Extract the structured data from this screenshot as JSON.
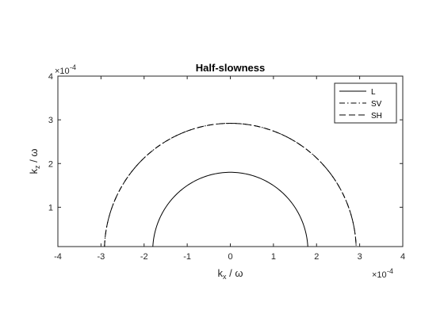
{
  "chart_data": {
    "type": "line",
    "title": "Half-slowness",
    "xlabel": {
      "main": "k",
      "sub": "x",
      "rest": " / ω"
    },
    "ylabel": {
      "main": "k",
      "sub": "z",
      "rest": " / ω"
    },
    "xlim": [
      -4,
      4
    ],
    "ylim": [
      0.1,
      4
    ],
    "xticks": [
      -4,
      -3,
      -2,
      -1,
      0,
      1,
      2,
      3,
      4
    ],
    "yticks": [
      1,
      2,
      3,
      4
    ],
    "x_exponent": {
      "base": "×10",
      "power": "-4"
    },
    "y_exponent": {
      "base": "×10",
      "power": "-4"
    },
    "grid": false,
    "legend_position": "top-right",
    "series": [
      {
        "name": "L",
        "shape": "semicircle",
        "radius": 1.8,
        "dash": "solid",
        "color": "#000000"
      },
      {
        "name": "SV",
        "shape": "semicircle",
        "radius": 2.92,
        "dash": "dashdot",
        "color": "#000000"
      },
      {
        "name": "SH",
        "shape": "semicircle",
        "radius": 2.92,
        "dash": "dashed",
        "color": "#000000"
      }
    ]
  }
}
